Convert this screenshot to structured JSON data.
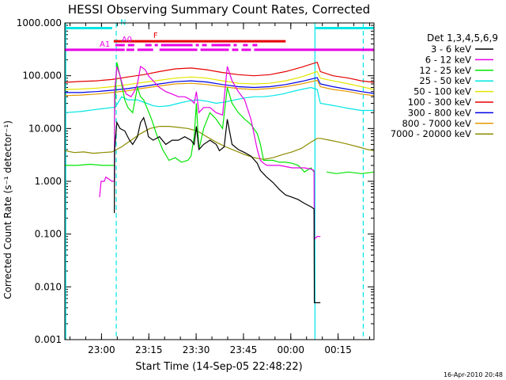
{
  "chart_data": {
    "type": "line",
    "title": "HESSI Observing Summary Count Rates, Corrected",
    "xlabel": "Start Time (14-Sep-05 22:48:22)",
    "ylabel": "Corrected Count Rate (s⁻¹ detector⁻¹)",
    "y_scale": "log",
    "ylim": [
      0.001,
      1000
    ],
    "xlim_minutes": [
      0,
      98
    ],
    "x_tick_labels": [
      "23:00",
      "23:15",
      "23:30",
      "23:45",
      "00:00",
      "00:15"
    ],
    "x_tick_minutes": [
      11.63,
      26.63,
      41.63,
      56.63,
      71.63,
      86.63
    ],
    "y_tick_labels": [
      "0.001",
      "0.010",
      "0.100",
      "1.000",
      "10.000",
      "100.000",
      "1000.000"
    ],
    "y_tick_values": [
      0.001,
      0.01,
      0.1,
      1,
      10,
      100,
      1000
    ],
    "timestamp": "16-Apr-2010 20:48",
    "legend": {
      "header": "Det 1,3,4,5,6,9",
      "placement": "right"
    },
    "flags": [
      {
        "label": "N",
        "color": "#00e5e5",
        "segments": [
          [
            0,
            15
          ],
          [
            79.5,
            98
          ]
        ],
        "y": 800
      },
      {
        "label": "F",
        "color": "#e50000",
        "segments": [
          [
            15.5,
            70
          ]
        ],
        "y": 450
      },
      {
        "label": "A0",
        "color": "#e500e5",
        "segments": [
          [
            16,
            19
          ],
          [
            20,
            22
          ],
          [
            25.5,
            27.5
          ],
          [
            28.5,
            29.5
          ],
          [
            30.5,
            40.5
          ],
          [
            41.5,
            42.5
          ],
          [
            43.5,
            45
          ],
          [
            46.5,
            52.5
          ],
          [
            53.5,
            54.5
          ],
          [
            56.5,
            58
          ],
          [
            59.5,
            61
          ]
        ],
        "y": 380
      },
      {
        "label": "A1",
        "color": "#e500e5",
        "segments": [
          [
            0,
            16
          ],
          [
            16,
            19
          ],
          [
            19.5,
            22
          ],
          [
            23,
            28
          ],
          [
            30,
            42
          ],
          [
            43,
            52
          ],
          [
            53,
            55
          ],
          [
            56,
            59
          ],
          [
            60,
            98
          ]
        ],
        "y": 310
      }
    ],
    "vertical_lines": [
      {
        "minute": 16.3,
        "color": "#00e5e5",
        "style": "dashed"
      },
      {
        "minute": 79.3,
        "color": "#00e5e5",
        "style": "solid"
      },
      {
        "minute": 94.6,
        "color": "#00e5e5",
        "style": "dashed"
      }
    ],
    "series": [
      {
        "name": "3 - 6 keV",
        "color": "#000000",
        "x": [
          15.7,
          15.8,
          16.5,
          17.5,
          19,
          20.5,
          21.5,
          23,
          24,
          25,
          26,
          26.5,
          28,
          30,
          32,
          34,
          36,
          38,
          40,
          41,
          41.7,
          42.5,
          44,
          46,
          48,
          49,
          50.5,
          51.5,
          53,
          55,
          57,
          59,
          61,
          62,
          64,
          66,
          68,
          70,
          72,
          74,
          76,
          78,
          79,
          79.1,
          80,
          81
        ],
        "y": [
          0.25,
          4,
          13,
          10,
          9,
          6,
          5,
          7,
          13,
          16,
          10,
          7,
          6,
          7,
          5,
          6,
          6,
          7,
          6,
          5,
          11,
          4,
          5,
          6,
          5,
          3.8,
          4.5,
          15,
          5,
          4,
          3.5,
          3,
          2.2,
          1.6,
          1.2,
          0.95,
          0.7,
          0.55,
          0.5,
          0.45,
          0.38,
          0.33,
          0.3,
          0.005,
          0.005,
          0.005
        ]
      },
      {
        "name": "6 - 12 keV",
        "color": "#e500e5",
        "x": [
          11,
          11.5,
          12.5,
          13,
          15,
          15.7,
          15.8,
          16.5,
          17.5,
          18.5,
          19.5,
          21,
          22,
          23,
          24,
          25.5,
          26.5,
          28,
          30,
          32,
          34,
          36,
          38,
          40,
          41,
          41.7,
          42.5,
          44,
          46,
          48,
          50,
          51.5,
          53,
          55,
          57,
          59,
          61,
          62,
          63,
          64,
          66,
          68,
          70,
          72,
          74,
          76,
          78,
          79,
          79.1,
          80,
          81
        ],
        "y": [
          0.5,
          1,
          1,
          1.2,
          1,
          1,
          50,
          150,
          100,
          60,
          45,
          40,
          50,
          70,
          150,
          130,
          100,
          80,
          60,
          50,
          45,
          40,
          40,
          35,
          30,
          50,
          20,
          25,
          25,
          20,
          18,
          150,
          80,
          50,
          35,
          15,
          4,
          2.5,
          2.2,
          2,
          2,
          2,
          1.9,
          1.8,
          1.8,
          1.8,
          1.7,
          1.6,
          0.08,
          0.09,
          0.09
        ]
      },
      {
        "name": "12 - 25 keV",
        "color": "#00e500",
        "x": [
          0,
          4,
          8,
          12,
          15.7,
          15.8,
          16.5,
          17.5,
          19,
          20,
          21.5,
          23,
          24,
          25,
          26,
          27.5,
          29,
          31,
          33,
          35,
          37,
          39,
          40,
          41,
          41.7,
          42.5,
          44,
          46,
          48,
          50,
          51.5,
          53,
          55,
          57,
          59,
          61,
          62,
          63,
          64,
          66,
          68,
          70,
          72,
          74,
          76,
          78,
          79,
          79.1,
          83,
          86,
          90,
          94,
          98
        ],
        "y": [
          2,
          2,
          2.1,
          2,
          2,
          20,
          180,
          100,
          35,
          25,
          20,
          60,
          40,
          35,
          25,
          15,
          8,
          4,
          2.5,
          2.8,
          2.3,
          2.5,
          3,
          7,
          30,
          4,
          10,
          20,
          15,
          10,
          60,
          30,
          20,
          15,
          12,
          8,
          5,
          2.5,
          2.5,
          2.5,
          2.3,
          2.3,
          2.2,
          2,
          1.5,
          1.8,
          1.5,
          null,
          1.5,
          1.4,
          1.5,
          1.4,
          1.5
        ]
      },
      {
        "name": "25 - 50 keV",
        "color": "#00e5e5",
        "x": [
          0,
          5,
          10,
          15,
          16,
          18,
          20,
          23,
          26,
          28,
          30,
          33,
          36,
          39,
          42,
          45,
          48,
          51,
          54,
          57,
          60,
          63,
          66,
          69,
          72,
          75,
          78,
          80,
          81,
          84,
          87,
          90,
          94,
          98
        ],
        "y": [
          20,
          21,
          23,
          25,
          25,
          40,
          35,
          35,
          30,
          27,
          26,
          27,
          30,
          33,
          35,
          33,
          30,
          32,
          35,
          38,
          40,
          40,
          42,
          45,
          50,
          55,
          60,
          55,
          30,
          28,
          26,
          24,
          22,
          22
        ]
      },
      {
        "name": "50 - 100 keV",
        "color": "#e5e500",
        "x": [
          0,
          5,
          10,
          15,
          20,
          25,
          30,
          35,
          40,
          45,
          50,
          55,
          60,
          65,
          70,
          75,
          80,
          81,
          85,
          90,
          94,
          98
        ],
        "y": [
          55,
          56,
          58,
          62,
          68,
          75,
          82,
          90,
          95,
          90,
          80,
          72,
          70,
          72,
          80,
          95,
          120,
          90,
          80,
          70,
          62,
          55
        ]
      },
      {
        "name": "100 - 300 keV",
        "color": "#e50000",
        "x": [
          0,
          5,
          10,
          15,
          20,
          25,
          30,
          35,
          40,
          45,
          50,
          55,
          60,
          65,
          70,
          75,
          80,
          81,
          85,
          90,
          94,
          98
        ],
        "y": [
          75,
          78,
          80,
          85,
          95,
          105,
          120,
          135,
          140,
          130,
          115,
          105,
          100,
          105,
          120,
          145,
          180,
          120,
          100,
          90,
          80,
          75
        ]
      },
      {
        "name": "300 - 800 keV",
        "color": "#0000e5",
        "x": [
          0,
          5,
          10,
          15,
          20,
          25,
          30,
          35,
          40,
          45,
          50,
          55,
          60,
          65,
          70,
          75,
          80,
          81,
          85,
          90,
          94,
          98
        ],
        "y": [
          48,
          48,
          50,
          53,
          57,
          63,
          70,
          77,
          80,
          76,
          68,
          62,
          60,
          62,
          68,
          78,
          92,
          70,
          62,
          55,
          50,
          46
        ]
      },
      {
        "name": "800 - 7000 keV",
        "color": "#e59900",
        "x": [
          0,
          5,
          10,
          15,
          20,
          25,
          30,
          35,
          40,
          45,
          50,
          55,
          60,
          65,
          70,
          75,
          80,
          81,
          85,
          90,
          94,
          98
        ],
        "y": [
          42,
          43,
          45,
          48,
          52,
          58,
          64,
          70,
          72,
          68,
          62,
          57,
          55,
          57,
          62,
          70,
          82,
          62,
          55,
          50,
          45,
          42
        ]
      },
      {
        "name": "7000 - 20000 keV",
        "color": "#8c8c00",
        "x": [
          0,
          3,
          6,
          9,
          12,
          15,
          18,
          21,
          24,
          27,
          30,
          33,
          36,
          39,
          42,
          45,
          48,
          51,
          54,
          57,
          60,
          63,
          66,
          69,
          72,
          75,
          78,
          80,
          81,
          84,
          87,
          90,
          93,
          96,
          98
        ],
        "y": [
          3.8,
          3.5,
          3.6,
          3.4,
          3.5,
          3.6,
          4.5,
          6,
          8,
          10,
          11,
          11,
          10.5,
          10,
          9,
          7,
          5.5,
          4.5,
          3.8,
          3.2,
          2.8,
          2.6,
          2.8,
          3.2,
          3.6,
          4.2,
          5.5,
          6.5,
          6.5,
          6,
          5.5,
          5,
          4.5,
          4,
          3.8
        ]
      }
    ]
  }
}
